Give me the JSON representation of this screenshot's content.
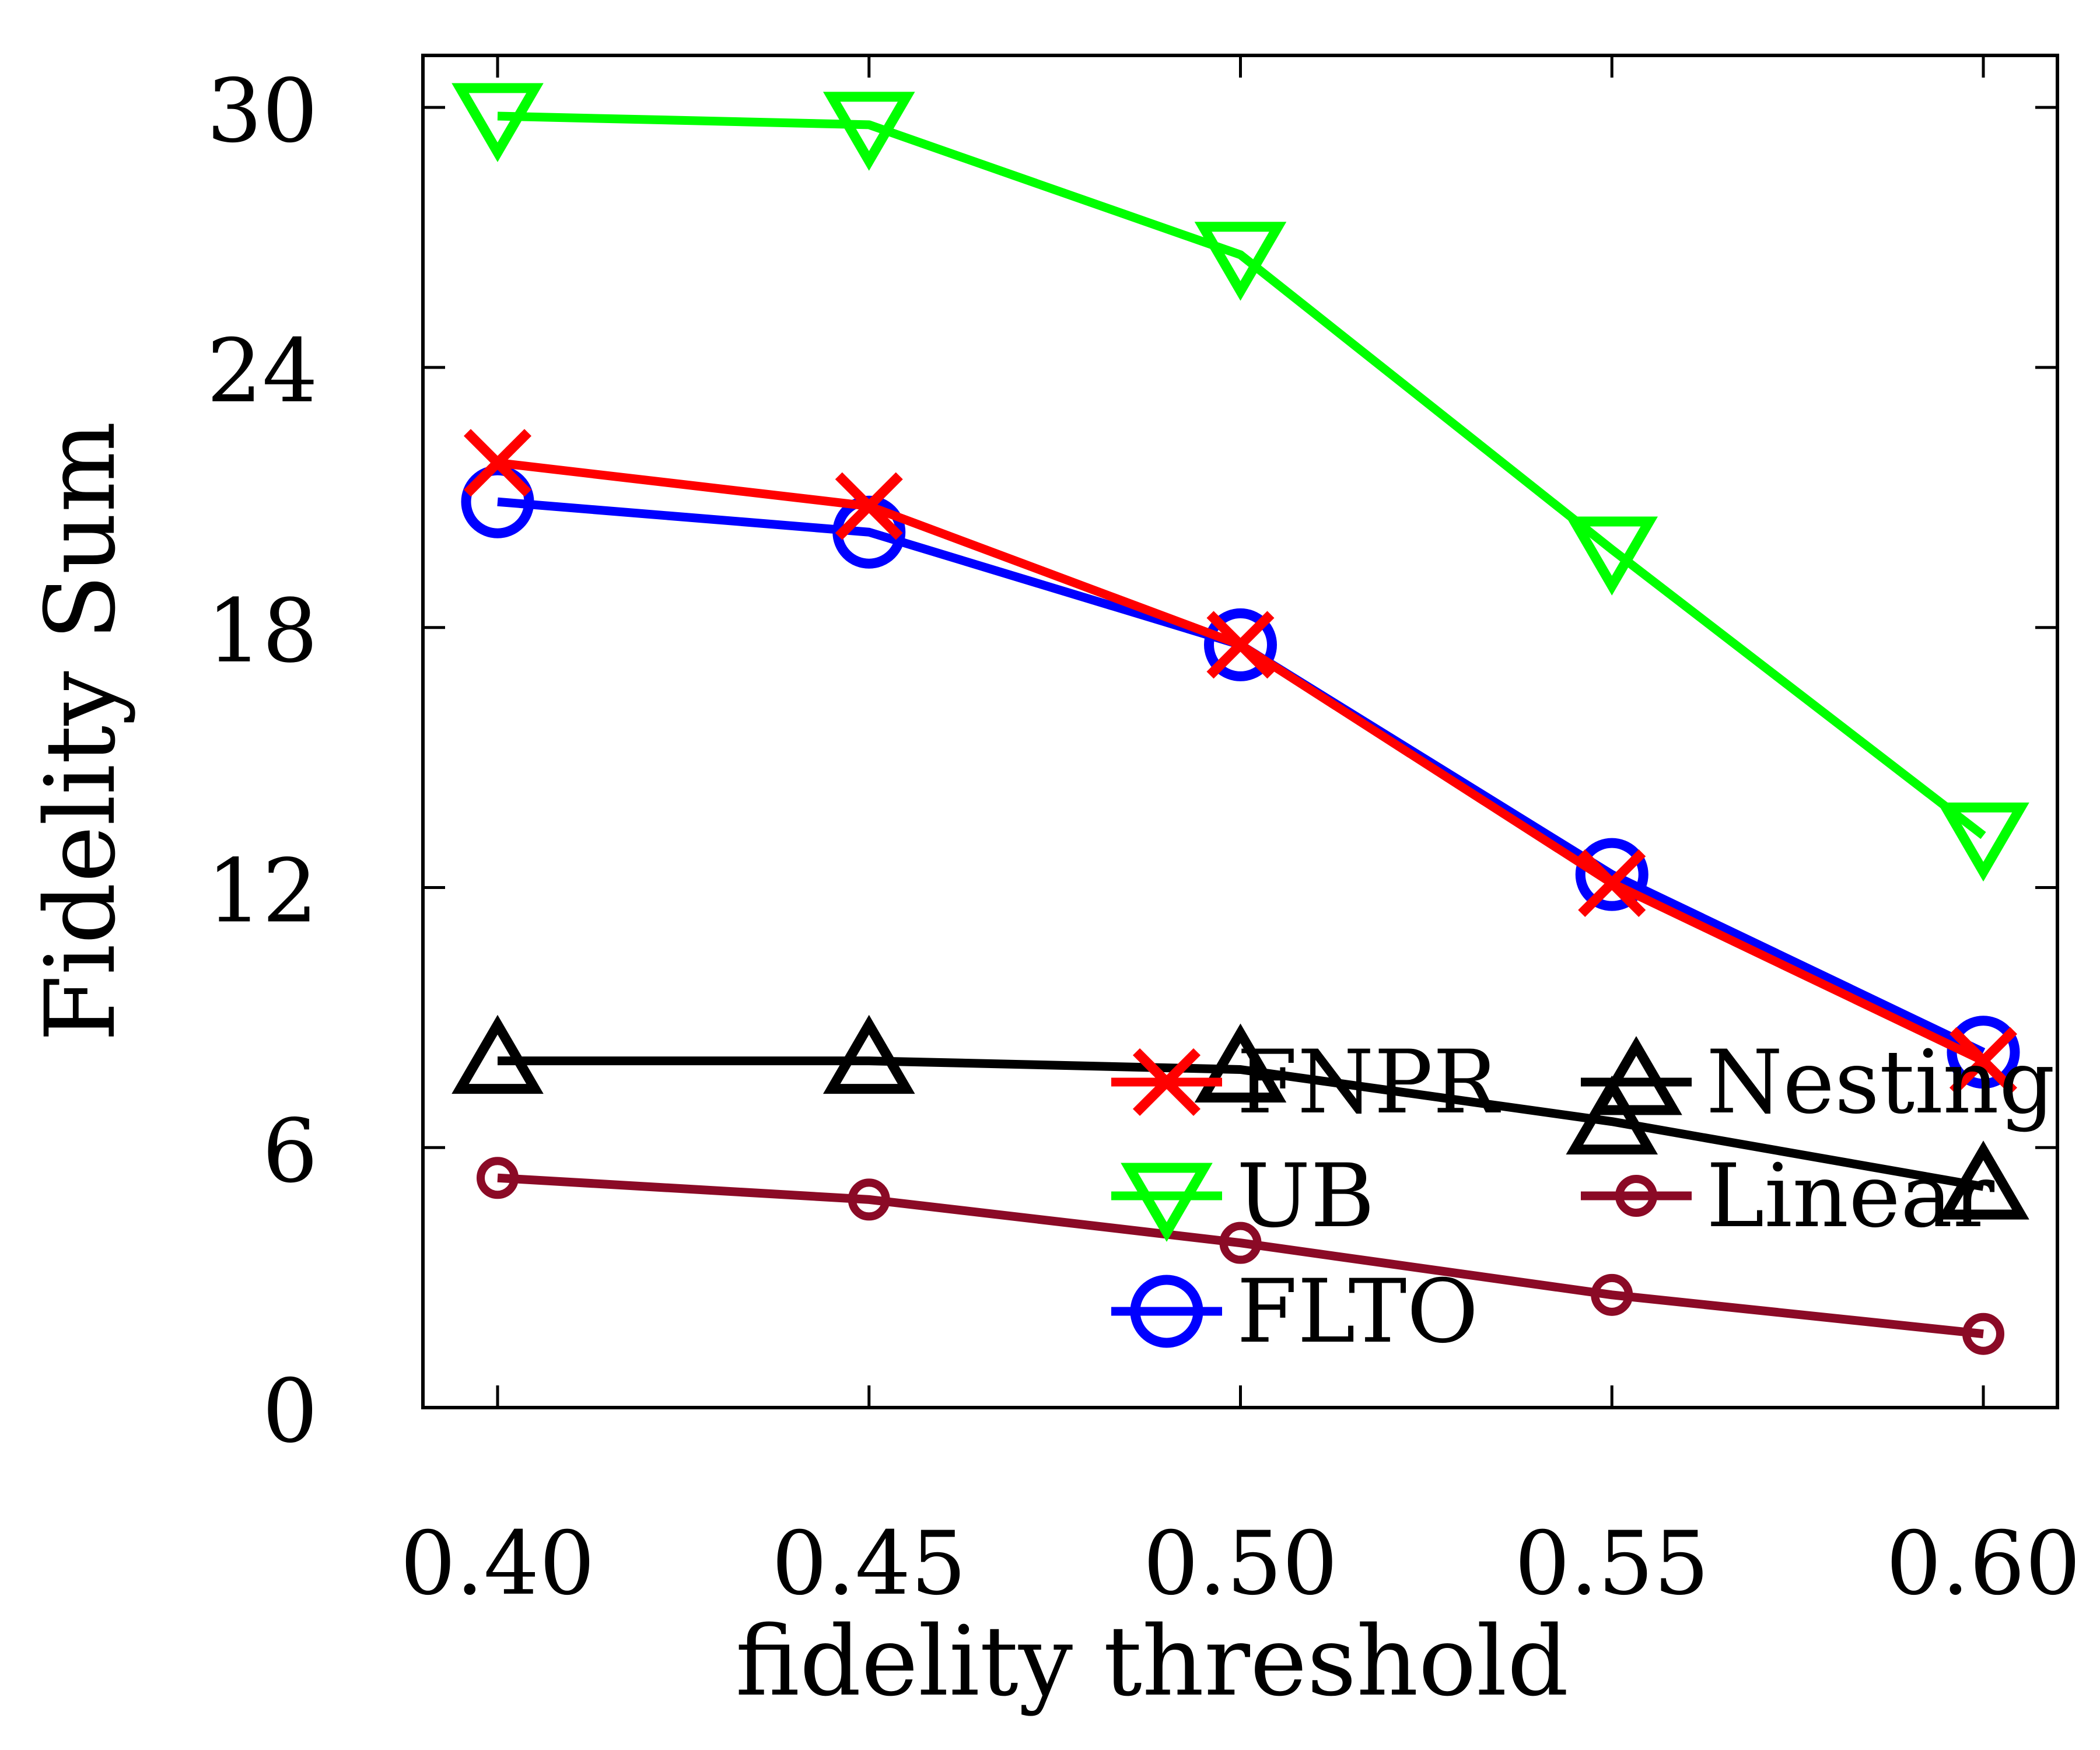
{
  "chart_data": {
    "type": "line",
    "xlabel": "fidelity threshold",
    "ylabel": "Fidelity Sum",
    "x": [
      0.4,
      0.45,
      0.5,
      0.55,
      0.6
    ],
    "x_tick_labels": [
      "0.40",
      "0.45",
      "0.50",
      "0.55",
      "0.60"
    ],
    "ylim": [
      0,
      31.2
    ],
    "y_ticks": [
      0,
      6,
      12,
      18,
      24,
      30
    ],
    "y_tick_labels": [
      "0",
      "6",
      "12",
      "18",
      "24",
      "30"
    ],
    "grid": false,
    "legend_position": "lower-right",
    "series": [
      {
        "name": "FNPR",
        "color": "#ff0000",
        "marker": "cross",
        "values": [
          21.8,
          20.8,
          17.6,
          12.1,
          8.0
        ]
      },
      {
        "name": "Nesting",
        "color": "#000000",
        "marker": "triangle-up",
        "values": [
          8.0,
          8.0,
          7.8,
          6.6,
          5.1
        ]
      },
      {
        "name": "UB",
        "color": "#00ff00",
        "marker": "triangle-down",
        "values": [
          29.8,
          29.6,
          26.6,
          19.8,
          13.2
        ]
      },
      {
        "name": "Linear",
        "color": "#8b0a26",
        "marker": "small-circle",
        "values": [
          5.3,
          4.8,
          3.8,
          2.6,
          1.7
        ]
      },
      {
        "name": "FLTO",
        "color": "#0000ff",
        "marker": "circle",
        "values": [
          20.9,
          20.2,
          17.6,
          12.3,
          8.2
        ]
      }
    ]
  }
}
